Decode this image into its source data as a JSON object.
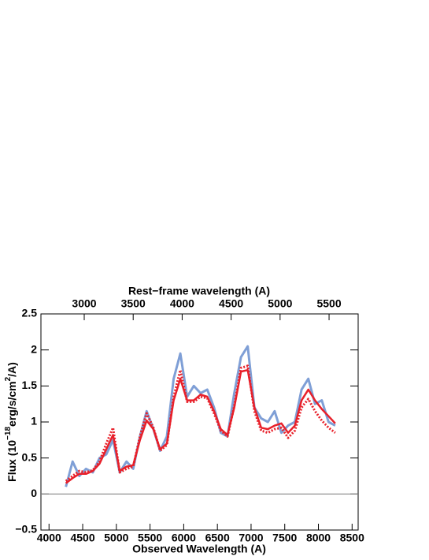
{
  "chart_data": {
    "type": "line",
    "title": "Rest−frame wavelength (A)",
    "x_label": "Observed Wavelength (A)",
    "y_label": [
      "Flux (10",
      "−18",
      "erg/s/cm",
      "2",
      "/A)"
    ],
    "x": [
      4250,
      4350,
      4450,
      4550,
      4650,
      4750,
      4850,
      4950,
      5050,
      5150,
      5250,
      5350,
      5450,
      5550,
      5650,
      5750,
      5850,
      5950,
      6050,
      6150,
      6250,
      6350,
      6450,
      6550,
      6650,
      6750,
      6850,
      6950,
      7050,
      7150,
      7250,
      7350,
      7450,
      7550,
      7650,
      7750,
      7850,
      7950,
      8050,
      8150,
      8250
    ],
    "series": [
      {
        "color": "#7f9fd6",
        "style": "solid",
        "width": 3,
        "values": [
          0.1,
          0.45,
          0.25,
          0.35,
          0.3,
          0.5,
          0.55,
          0.75,
          0.3,
          0.45,
          0.35,
          0.8,
          1.15,
          0.9,
          0.6,
          0.8,
          1.6,
          1.95,
          1.35,
          1.5,
          1.4,
          1.45,
          1.2,
          0.85,
          0.8,
          1.4,
          1.9,
          2.05,
          1.2,
          1.05,
          1.0,
          1.15,
          0.85,
          0.95,
          1.0,
          1.45,
          1.6,
          1.25,
          1.3,
          1.0,
          0.95
        ]
      },
      {
        "color": "#e8202a",
        "style": "dotted",
        "width": 3,
        "values": [
          0.18,
          0.25,
          0.32,
          0.3,
          0.33,
          0.45,
          0.7,
          0.92,
          0.3,
          0.35,
          0.38,
          0.8,
          1.12,
          0.92,
          0.6,
          0.68,
          1.35,
          1.72,
          1.28,
          1.28,
          1.35,
          1.33,
          1.12,
          0.88,
          0.8,
          1.22,
          1.75,
          1.78,
          1.15,
          0.88,
          0.85,
          0.9,
          0.92,
          0.78,
          0.88,
          1.2,
          1.32,
          1.15,
          1.02,
          0.92,
          0.85
        ]
      },
      {
        "color": "#e8202a",
        "style": "solid",
        "width": 2.5,
        "values": [
          0.15,
          0.22,
          0.28,
          0.28,
          0.32,
          0.42,
          0.62,
          0.82,
          0.32,
          0.38,
          0.4,
          0.75,
          1.02,
          0.9,
          0.62,
          0.7,
          1.3,
          1.6,
          1.3,
          1.3,
          1.38,
          1.35,
          1.15,
          0.9,
          0.82,
          1.2,
          1.7,
          1.72,
          1.2,
          0.92,
          0.9,
          0.95,
          0.98,
          0.85,
          0.95,
          1.3,
          1.45,
          1.3,
          1.18,
          1.08,
          0.98
        ]
      }
    ],
    "hline": 0,
    "xlim": [
      3880,
      8590
    ],
    "xticks": [
      4000,
      4500,
      5000,
      5500,
      6000,
      6500,
      7000,
      7500,
      8000,
      8500
    ],
    "x2lim": [
      2558,
      5797
    ],
    "x2ticks": [
      3000,
      3500,
      4000,
      4500,
      5000,
      5500
    ],
    "ylim": [
      -0.5,
      2.5
    ],
    "yticks": [
      {
        "value": -0.5,
        "label": "−0.5"
      },
      0,
      0.5,
      1,
      1.5,
      2,
      2.5
    ]
  }
}
